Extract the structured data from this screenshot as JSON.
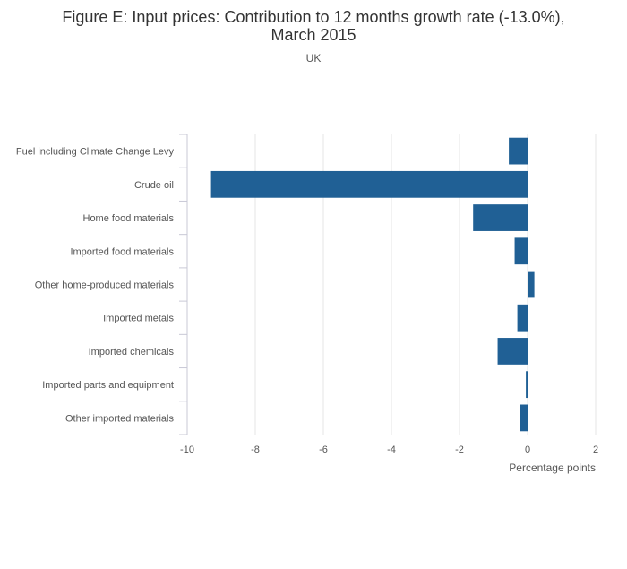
{
  "chart_data": {
    "type": "bar",
    "orientation": "horizontal",
    "title_line1": "Figure E: Input prices: Contribution to 12 months growth rate (-13.0%),",
    "title_line2": "March 2015",
    "subtitle": "UK",
    "xlabel": "Percentage points",
    "xlim": [
      -10,
      2
    ],
    "xticks": [
      -10,
      -8,
      -6,
      -4,
      -2,
      0,
      2
    ],
    "categories": [
      "Fuel including Climate Change Levy",
      "Crude oil",
      "Home food materials",
      "Imported food materials",
      "Other home-produced materials",
      "Imported metals",
      "Imported chemicals",
      "Imported parts and equipment",
      "Other imported materials"
    ],
    "values": [
      -0.55,
      -9.3,
      -1.6,
      -0.38,
      0.2,
      -0.3,
      -0.88,
      -0.05,
      -0.22
    ],
    "bar_color": "#206095",
    "grid": true
  }
}
